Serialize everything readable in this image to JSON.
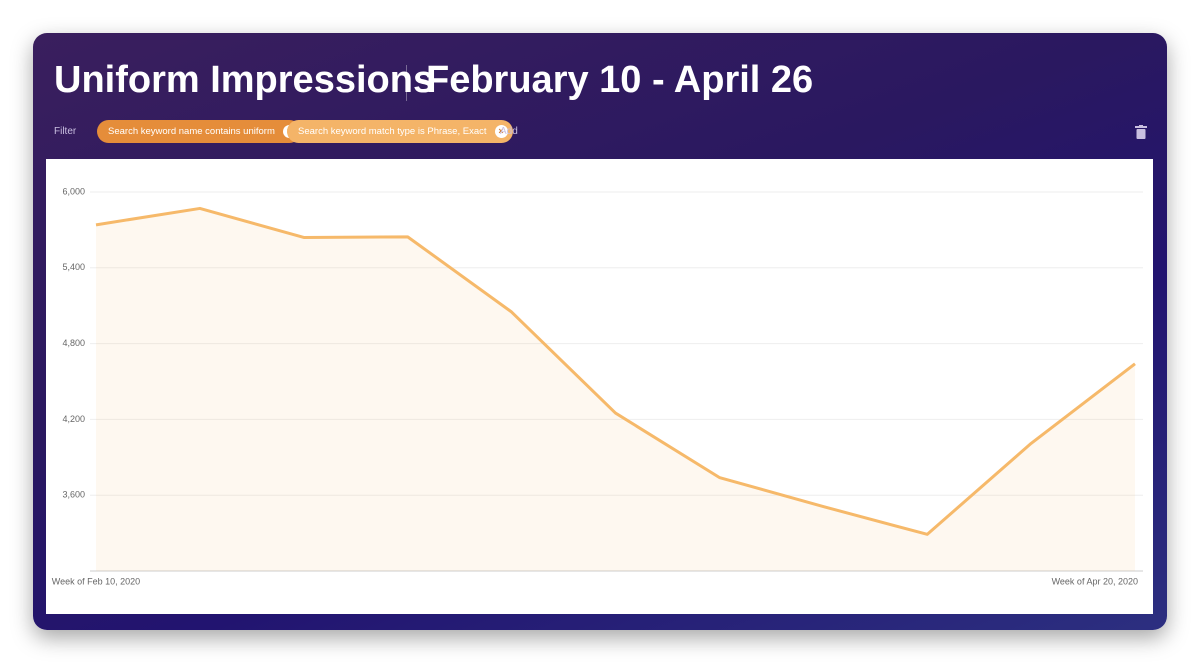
{
  "header": {
    "title": "Uniform Impressions",
    "subtitle": "February 10 - April 26"
  },
  "filters": {
    "label": "Filter",
    "chips": [
      "Search keyword name contains uniform",
      "Search keyword match type is Phrase, Exact"
    ],
    "add": "Add"
  },
  "chart_data": {
    "type": "line",
    "categories": [
      "Week of Feb 10, 2020",
      null,
      null,
      null,
      null,
      null,
      null,
      null,
      null,
      null,
      "Week of Apr 20, 2020"
    ],
    "series": [
      {
        "color": "#f6b96a",
        "values": [
          5740,
          5870,
          5640,
          5645,
          5050,
          4250,
          3740,
          3510,
          3290,
          4010,
          4640
        ]
      }
    ],
    "ylim": [
      3000,
      6000
    ],
    "yticks": [
      {
        "value": 3600,
        "label": "3,600"
      },
      {
        "value": 4200,
        "label": "4,200"
      },
      {
        "value": 4800,
        "label": "4,800"
      },
      {
        "value": 5400,
        "label": "5,400"
      },
      {
        "value": 6000,
        "label": "6,000"
      }
    ],
    "grid": true,
    "area": true
  }
}
